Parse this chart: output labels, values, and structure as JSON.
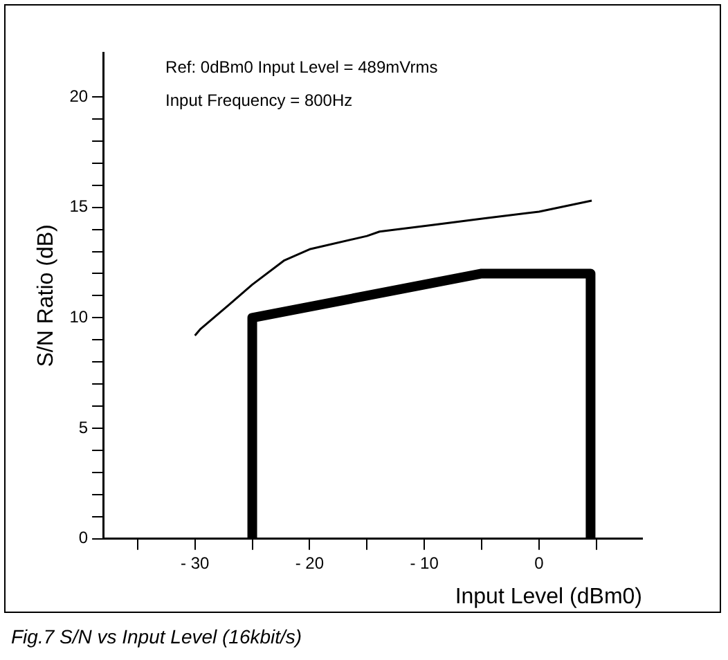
{
  "chart_data": {
    "type": "line",
    "title": "Fig.7 S/N vs Input Level (16kbit/s)",
    "xlabel": "Input Level (dBm0)",
    "ylabel": "S/N Ratio (dB)",
    "annotations": [
      "Ref: 0dBm0 Input Level = 489mVrms",
      "Input Frequency = 800Hz"
    ],
    "xlim": [
      -38,
      9
    ],
    "ylim": [
      0,
      22
    ],
    "xticks": [
      {
        "value": -35,
        "label": null
      },
      {
        "value": -30,
        "label": "- 30"
      },
      {
        "value": -25,
        "label": null
      },
      {
        "value": -20,
        "label": "- 20"
      },
      {
        "value": -15,
        "label": null
      },
      {
        "value": -10,
        "label": "- 10"
      },
      {
        "value": -5,
        "label": null
      },
      0,
      {
        "value": 5,
        "label": null
      }
    ],
    "yticks": [
      0,
      {
        "value": 1,
        "label": null
      },
      {
        "value": 2,
        "label": null
      },
      {
        "value": 3,
        "label": null
      },
      {
        "value": 4,
        "label": null
      },
      5,
      {
        "value": 6,
        "label": null
      },
      {
        "value": 7,
        "label": null
      },
      {
        "value": 8,
        "label": null
      },
      {
        "value": 9,
        "label": null
      },
      10,
      {
        "value": 11,
        "label": null
      },
      {
        "value": 12,
        "label": null
      },
      {
        "value": 13,
        "label": null
      },
      {
        "value": 14,
        "label": null
      },
      15,
      {
        "value": 16,
        "label": null
      },
      {
        "value": 17,
        "label": null
      },
      {
        "value": 18,
        "label": null
      },
      {
        "value": 19,
        "label": null
      },
      20
    ],
    "marker": "none",
    "series": [
      {
        "type": "line",
        "color": "#000000",
        "x": [
          -30,
          -29.5,
          -27,
          -25,
          -22.2,
          -20,
          -15,
          -13.9,
          -9.3,
          -4.7,
          0,
          4.6
        ],
        "values": [
          9.2,
          9.5,
          10.6,
          11.5,
          12.6,
          13.1,
          13.7,
          13.9,
          14.2,
          14.5,
          14.8,
          15.3
        ]
      },
      {
        "type": "line",
        "color": "#000000",
        "x": [
          -25,
          -25,
          -5,
          4.5,
          4.5
        ],
        "values": [
          0,
          10,
          12,
          12,
          0
        ]
      }
    ]
  }
}
